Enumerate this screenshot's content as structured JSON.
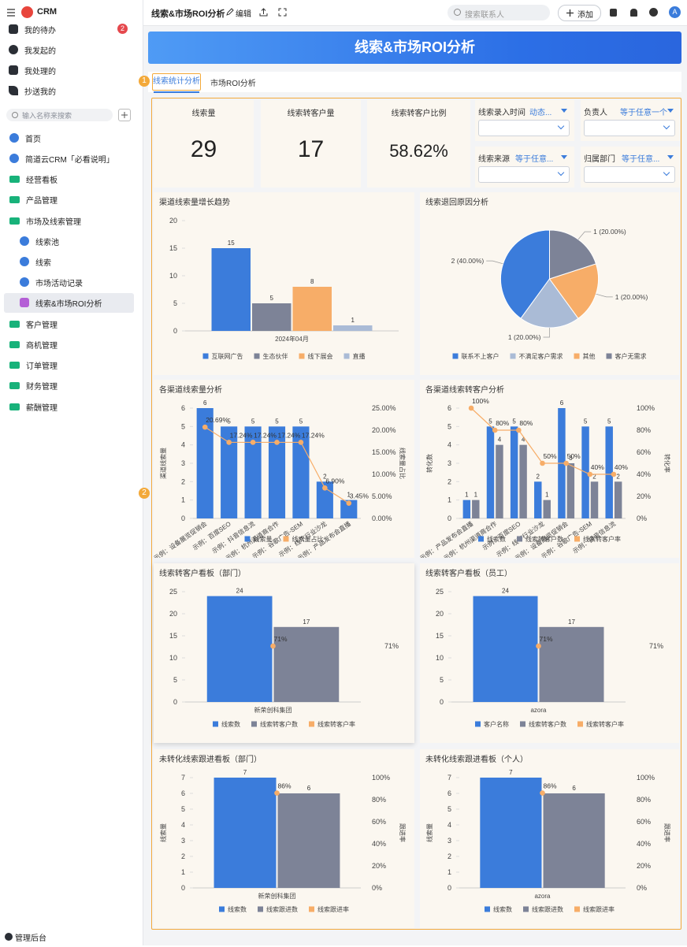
{
  "sidebar": {
    "app": "CRM",
    "nav": [
      {
        "label": "我的待办",
        "badge": 2
      },
      {
        "label": "我发起的"
      },
      {
        "label": "我处理的"
      },
      {
        "label": "抄送我的"
      }
    ],
    "search_placeholder": "输入名称来搜索",
    "tree": [
      "首页",
      "简道云CRM「必看说明」",
      "经营看板",
      "产品管理",
      "市场及线索管理",
      "线索池",
      "线索",
      "市场活动记录",
      "线索&市场ROI分析",
      "客户管理",
      "商机管理",
      "订单管理",
      "财务管理",
      "薪酬管理"
    ],
    "footer": "管理后台"
  },
  "header": {
    "title": "线索&市场ROI分析",
    "edit": "编辑",
    "search_placeholder": "搜索联系人",
    "add": "添加",
    "avatar": "A"
  },
  "banner": "线索&市场ROI分析",
  "tabs": [
    "线索统计分析",
    "市场ROI分析"
  ],
  "markers": [
    1,
    2
  ],
  "kpis": [
    {
      "label": "线索量",
      "value": 29
    },
    {
      "label": "线索转客户量",
      "value": 17
    },
    {
      "label": "线索转客户比例",
      "value": "58.62%"
    }
  ],
  "filters": [
    {
      "label": "线索录入时间",
      "mode": "动态..."
    },
    {
      "label": "负责人",
      "mode": "等于任意一个"
    },
    {
      "label": "线索来源",
      "mode": "等于任意..."
    },
    {
      "label": "归属部门",
      "mode": "等于任意..."
    }
  ],
  "charts": [
    {
      "type": "bar",
      "title": "渠道线索量增长趋势",
      "categories": [
        "2024年04月"
      ],
      "series": [
        {
          "name": "互联网广告",
          "color": "#3b7cdb",
          "values": [
            15
          ]
        },
        {
          "name": "生态伙伴",
          "color": "#7d8397",
          "values": [
            5
          ]
        },
        {
          "name": "线下展会",
          "color": "#f7ad68",
          "values": [
            8
          ]
        },
        {
          "name": "直播",
          "color": "#aabbd6",
          "values": [
            1
          ]
        }
      ],
      "ylim": [
        0,
        20
      ],
      "yticks": [
        0,
        5,
        10,
        15,
        20
      ]
    },
    {
      "type": "pie",
      "title": "线索退回原因分析",
      "categories": [
        "联系不上客户",
        "不满足客户需求",
        "其他",
        "客户无需求"
      ],
      "values": [
        2,
        1,
        1,
        1
      ],
      "value_labels": [
        "2 (40.00%)",
        "1 (20.00%)",
        "1 (20.00%)",
        "1 (20.00%)"
      ],
      "colors": [
        "#3b7cdb",
        "#aabbd6",
        "#f7ad68",
        "#7d8397"
      ]
    },
    {
      "type": "bar",
      "title": "各渠道线索量分析",
      "rotate_labels": true,
      "categories": [
        "示例：设备展览促销会",
        "示例：百度SEO",
        "示例：抖音信息流",
        "示例：杭州渠道商合作",
        "示例：谷歌广告-SEM",
        "示例：线下行业沙龙",
        "示例：产品发布会直播"
      ],
      "series": [
        {
          "name": "线索量",
          "color": "#3b7cdb",
          "values": [
            6,
            5,
            5,
            5,
            5,
            2,
            1
          ]
        },
        {
          "name": "线索量占比",
          "color": "#f7ad68",
          "axis": "y2",
          "values": [
            20.69,
            17.24,
            17.24,
            17.24,
            17.24,
            6.9,
            3.45
          ],
          "value_labels": [
            "20.69%",
            "17.24%",
            "17.24%",
            "17.24%",
            "17.24%",
            "6.90%",
            "3.45%"
          ]
        }
      ],
      "ylim": [
        0,
        6
      ],
      "yticks": [
        0,
        1,
        2,
        3,
        4,
        5,
        6
      ],
      "y2lim": [
        0,
        25
      ],
      "y2ticks": [
        {
          "value": 0,
          "label": "0.00%"
        },
        {
          "value": 5,
          "label": "5.00%"
        },
        {
          "value": 10,
          "label": "10.00%"
        },
        {
          "value": 15,
          "label": "15.00%"
        },
        {
          "value": 20,
          "label": "20.00%"
        },
        {
          "value": 25,
          "label": "25.00%"
        }
      ],
      "ylabel": "渠道线索量",
      "y2label": "线索量占比"
    },
    {
      "type": "bar",
      "title": "各渠道线索转客户分析",
      "rotate_labels": true,
      "categories": [
        "示例：产品发布会直播",
        "示例：杭州渠道商合作",
        "示例：百度SEO",
        "示例：线下行业沙龙",
        "示例：设备展览促销会",
        "示例：谷歌广告-SEM",
        "示例：抖音信息流"
      ],
      "series": [
        {
          "name": "线索数",
          "color": "#3b7cdb",
          "values": [
            1,
            5,
            5,
            2,
            6,
            5,
            5
          ]
        },
        {
          "name": "线索转客户数",
          "color": "#7d8397",
          "values": [
            1,
            4,
            4,
            1,
            3,
            2,
            2
          ]
        },
        {
          "name": "线索转客户率",
          "color": "#f7ad68",
          "axis": "y2",
          "values": [
            100,
            80,
            80,
            50,
            50,
            40,
            40
          ],
          "value_labels": [
            "100%",
            "80%",
            "80%",
            "50%",
            "50%",
            "40%",
            "40%"
          ]
        }
      ],
      "ylim": [
        0,
        6
      ],
      "yticks": [
        0,
        1,
        2,
        3,
        4,
        5,
        6
      ],
      "y2lim": [
        0,
        100
      ],
      "y2ticks": [
        {
          "value": 0,
          "label": "0%"
        },
        {
          "value": 20,
          "label": "20%"
        },
        {
          "value": 40,
          "label": "40%"
        },
        {
          "value": 60,
          "label": "60%"
        },
        {
          "value": 80,
          "label": "80%"
        },
        {
          "value": 100,
          "label": "100%"
        }
      ],
      "ylabel": "转化数",
      "y2label": "转化率"
    },
    {
      "type": "bar",
      "title": "线索转客户看板（部门）",
      "categories": [
        "新荣创科集团"
      ],
      "series": [
        {
          "name": "线索数",
          "color": "#3b7cdb",
          "values": [
            24
          ]
        },
        {
          "name": "线索转客户数",
          "color": "#7d8397",
          "values": [
            17
          ]
        },
        {
          "name": "线索转客户率",
          "color": "#f7ad68",
          "axis": "y2",
          "values": [
            71
          ],
          "value_labels": [
            "71%"
          ]
        }
      ],
      "ylim": [
        0,
        25
      ],
      "yticks": [
        0,
        5,
        10,
        15,
        20,
        25
      ],
      "y2lim": [
        0,
        140
      ],
      "y2ticks": [
        {
          "value": 71,
          "label": "71%"
        }
      ]
    },
    {
      "type": "bar",
      "title": "线索转客户看板（员工）",
      "categories": [
        "azora"
      ],
      "series": [
        {
          "name": "客户名称",
          "color": "#3b7cdb",
          "values": [
            24
          ]
        },
        {
          "name": "线索转客户数",
          "color": "#7d8397",
          "values": [
            17
          ]
        },
        {
          "name": "线索转客户率",
          "color": "#f7ad68",
          "axis": "y2",
          "values": [
            71
          ],
          "value_labels": [
            "71%"
          ]
        }
      ],
      "ylim": [
        0,
        25
      ],
      "yticks": [
        0,
        5,
        10,
        15,
        20,
        25
      ],
      "y2lim": [
        0,
        140
      ],
      "y2ticks": [
        {
          "value": 71,
          "label": "71%"
        }
      ]
    },
    {
      "type": "bar",
      "title": "未转化线索跟进看板（部门）",
      "categories": [
        "新荣创科集团"
      ],
      "series": [
        {
          "name": "线索数",
          "color": "#3b7cdb",
          "values": [
            7
          ]
        },
        {
          "name": "线索跟进数",
          "color": "#7d8397",
          "values": [
            6
          ]
        },
        {
          "name": "线索跟进率",
          "color": "#f7ad68",
          "axis": "y2",
          "values": [
            86
          ],
          "value_labels": [
            "86%"
          ]
        }
      ],
      "ylim": [
        0,
        7
      ],
      "yticks": [
        0,
        1,
        2,
        3,
        4,
        5,
        6,
        7
      ],
      "y2lim": [
        0,
        100
      ],
      "y2ticks": [
        {
          "value": 0,
          "label": "0%"
        },
        {
          "value": 20,
          "label": "20%"
        },
        {
          "value": 40,
          "label": "40%"
        },
        {
          "value": 60,
          "label": "60%"
        },
        {
          "value": 80,
          "label": "80%"
        },
        {
          "value": 100,
          "label": "100%"
        }
      ],
      "ylabel": "线索量",
      "y2label": "跟进率"
    },
    {
      "type": "bar",
      "title": "未转化线索跟进看板（个人）",
      "categories": [
        "azora"
      ],
      "series": [
        {
          "name": "线索数",
          "color": "#3b7cdb",
          "values": [
            7
          ]
        },
        {
          "name": "线索跟进数",
          "color": "#7d8397",
          "values": [
            6
          ]
        },
        {
          "name": "线索跟进率",
          "color": "#f7ad68",
          "axis": "y2",
          "values": [
            86
          ],
          "value_labels": [
            "86%"
          ]
        }
      ],
      "ylim": [
        0,
        7
      ],
      "yticks": [
        0,
        1,
        2,
        3,
        4,
        5,
        6,
        7
      ],
      "y2lim": [
        0,
        100
      ],
      "y2ticks": [
        {
          "value": 0,
          "label": "0%"
        },
        {
          "value": 20,
          "label": "20%"
        },
        {
          "value": 40,
          "label": "40%"
        },
        {
          "value": 60,
          "label": "60%"
        },
        {
          "value": 80,
          "label": "80%"
        },
        {
          "value": 100,
          "label": "100%"
        }
      ],
      "ylabel": "线索量",
      "y2label": "跟进率"
    }
  ]
}
